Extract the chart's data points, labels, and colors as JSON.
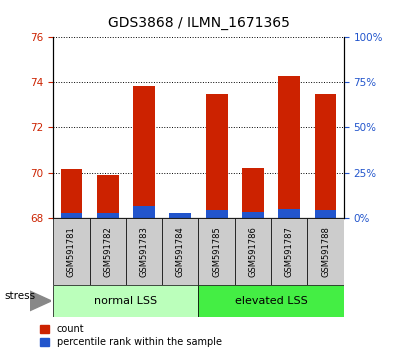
{
  "title": "GDS3868 / ILMN_1671365",
  "samples": [
    "GSM591781",
    "GSM591782",
    "GSM591783",
    "GSM591784",
    "GSM591785",
    "GSM591786",
    "GSM591787",
    "GSM591788"
  ],
  "red_top": [
    70.15,
    69.9,
    73.85,
    68.08,
    73.5,
    70.2,
    74.3,
    73.5
  ],
  "blue_top": [
    68.22,
    68.22,
    68.52,
    68.22,
    68.32,
    68.25,
    68.4,
    68.32
  ],
  "bar_bottom": 68.0,
  "ylim_left": [
    68,
    76
  ],
  "yticks_left": [
    68,
    70,
    72,
    74,
    76
  ],
  "ylim_right": [
    0,
    100
  ],
  "yticks_right": [
    0,
    25,
    50,
    75,
    100
  ],
  "ytick_labels_right": [
    "0%",
    "25%",
    "50%",
    "75%",
    "100%"
  ],
  "group1_label": "normal LSS",
  "group2_label": "elevated LSS",
  "group1_indices": [
    0,
    1,
    2,
    3
  ],
  "group2_indices": [
    4,
    5,
    6,
    7
  ],
  "stress_label": "stress",
  "legend_count": "count",
  "legend_percentile": "percentile rank within the sample",
  "red_color": "#CC2200",
  "blue_color": "#2255CC",
  "group1_bg": "#BBFFBB",
  "group2_bg": "#44EE44",
  "gray_bg": "#CCCCCC",
  "bar_width": 0.6,
  "title_fontsize": 10,
  "tick_fontsize": 7.5,
  "label_fontsize": 8
}
